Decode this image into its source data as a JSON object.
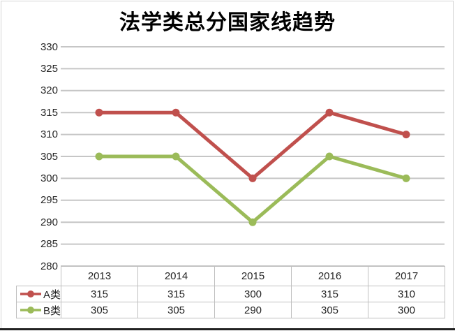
{
  "title": "法学类总分国家线趋势",
  "chart_data": {
    "type": "line",
    "title": "法学类总分国家线趋势",
    "categories": [
      "2013",
      "2014",
      "2015",
      "2016",
      "2017"
    ],
    "series": [
      {
        "name": "A类",
        "values": [
          315,
          315,
          300,
          315,
          310
        ],
        "color": "#c0504d"
      },
      {
        "name": "B类",
        "values": [
          305,
          305,
          290,
          305,
          300
        ],
        "color": "#9bbb59"
      }
    ],
    "ylim": [
      280,
      330
    ],
    "yticks": [
      330,
      325,
      320,
      315,
      310,
      305,
      300,
      295,
      290,
      285,
      280
    ],
    "xlabel": "",
    "ylabel": "",
    "grid": true,
    "gridline_color": "#c6c6c6",
    "table_border_color": "#bfbfbf",
    "text_color": "#262626",
    "legend_position": "left-of-data-table",
    "data_table_shown": true
  }
}
